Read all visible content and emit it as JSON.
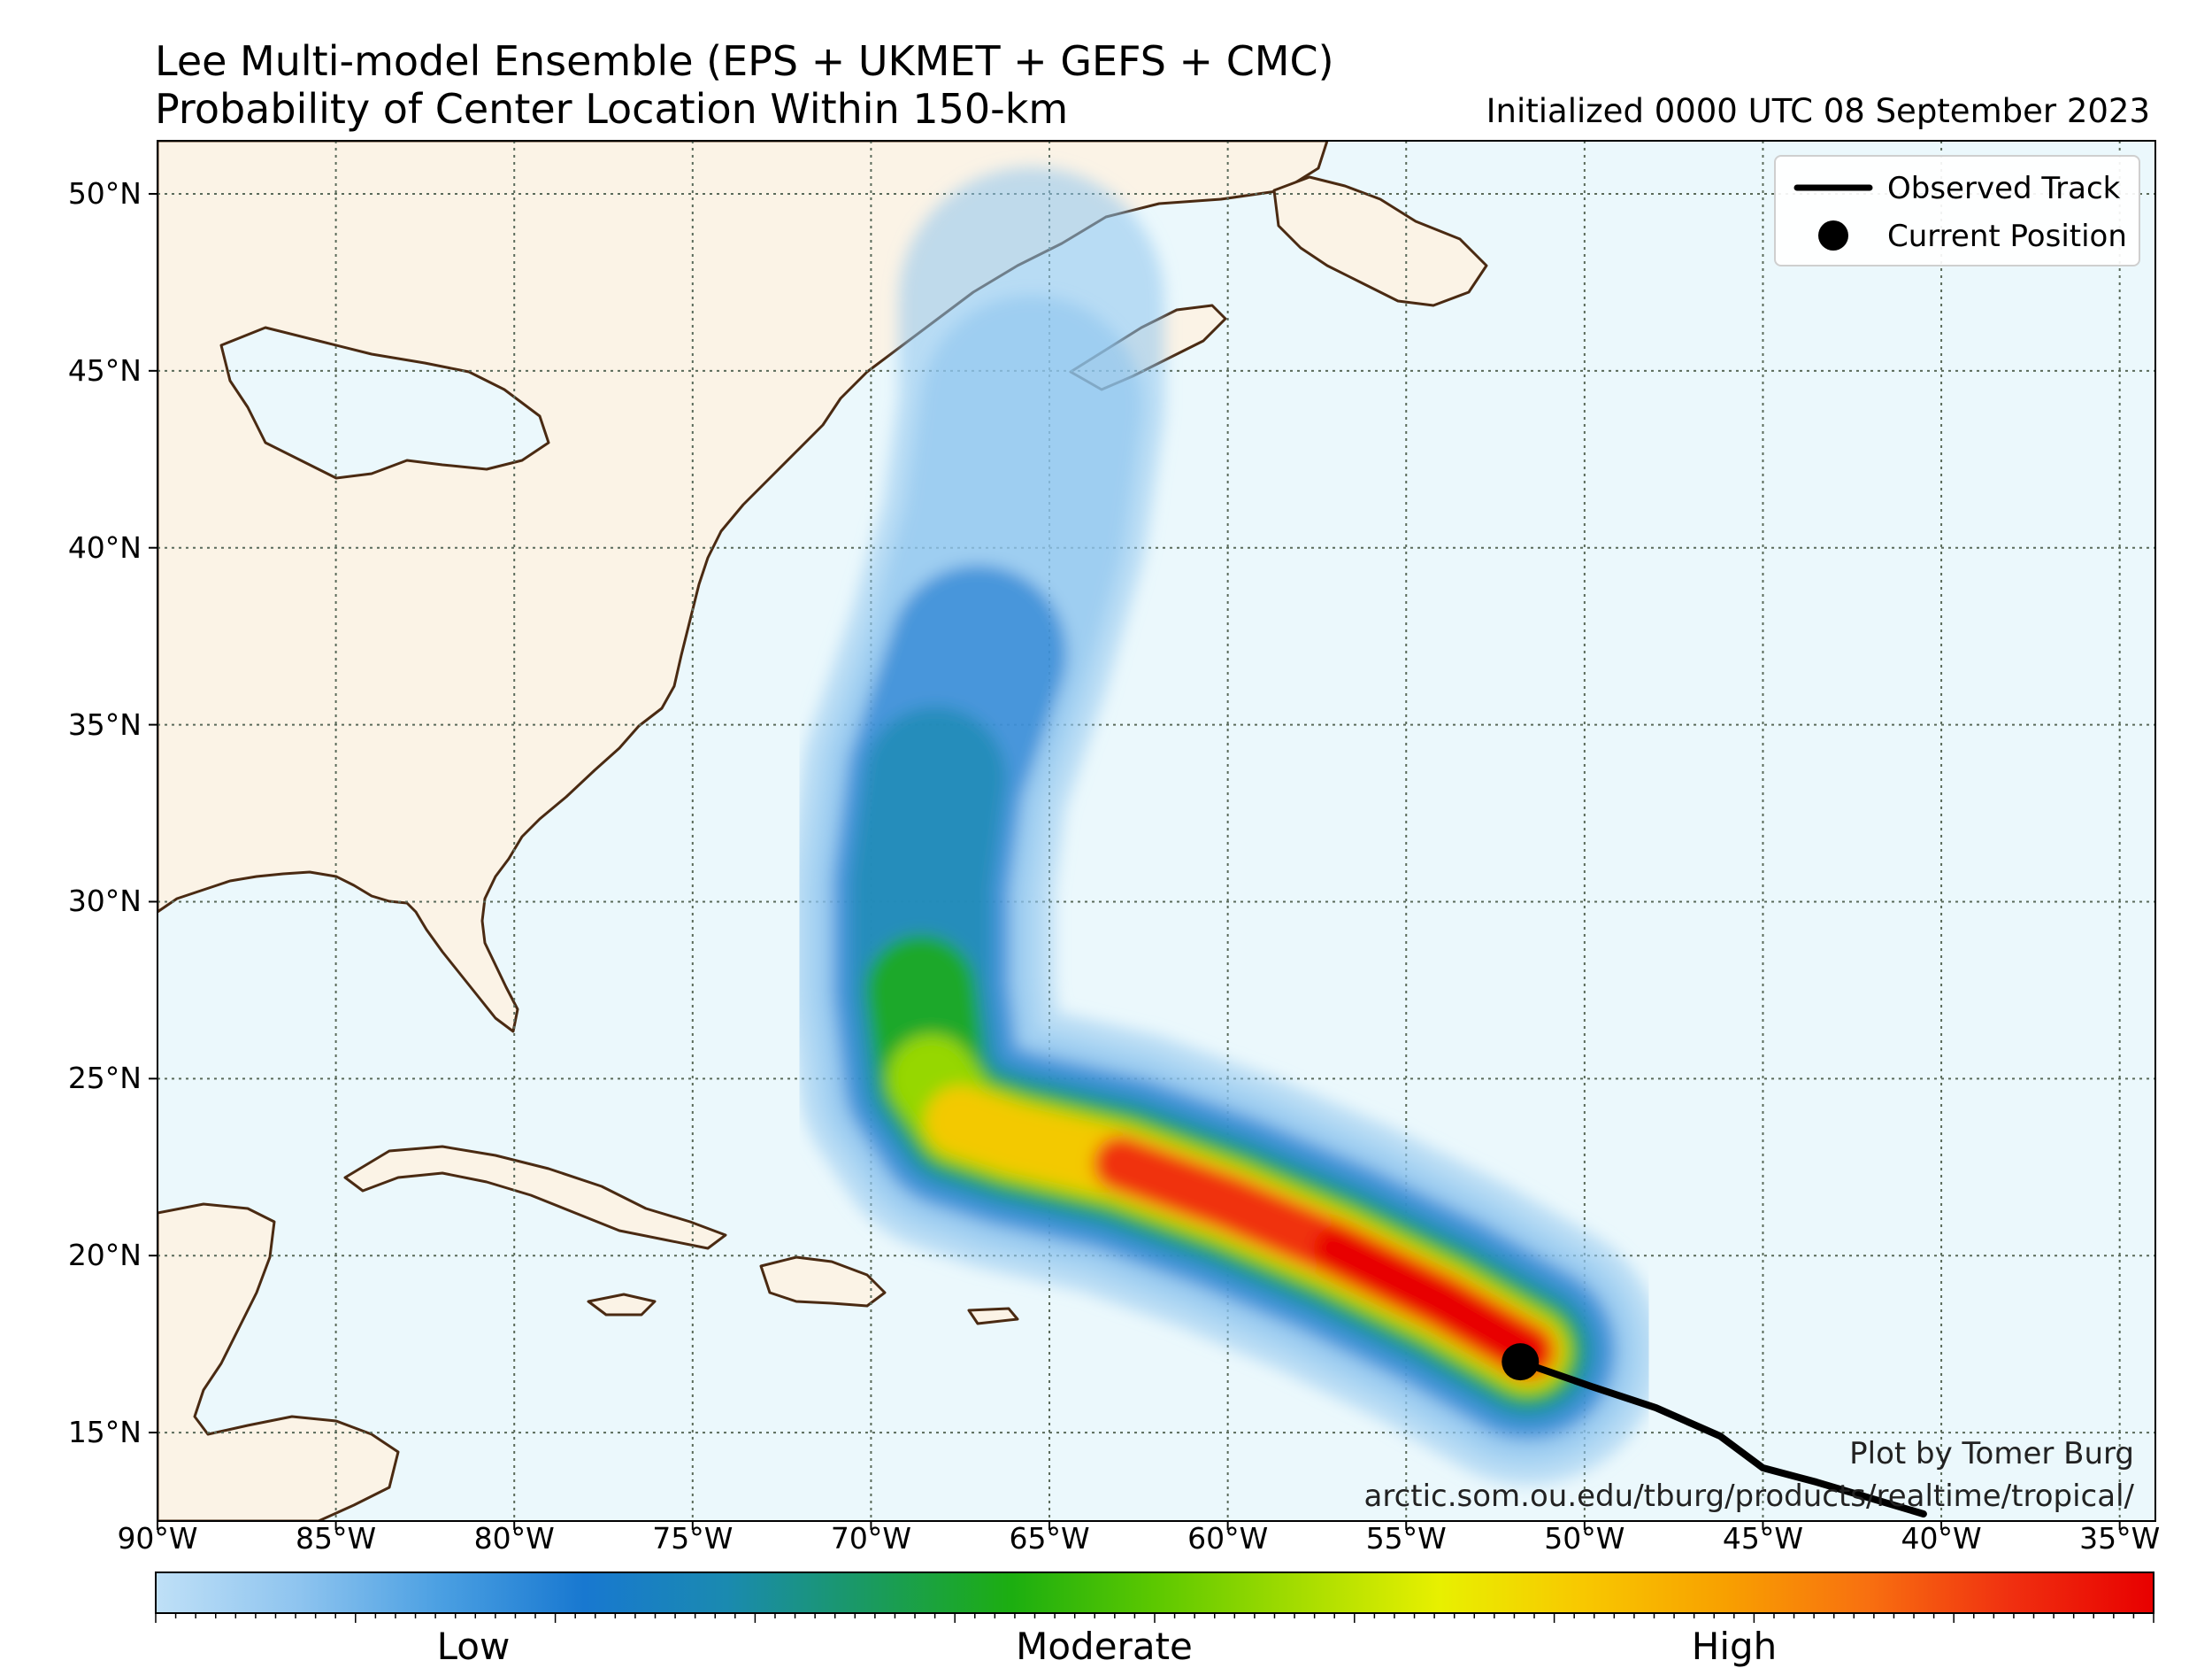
{
  "title": {
    "line1": "Lee Multi-model Ensemble (EPS + UKMET + GEFS + CMC)",
    "line2": "Probability of Center Location Within 150-km",
    "initialized": "Initialized 0000 UTC 08 September 2023"
  },
  "map": {
    "lon_range": [
      -90,
      -34
    ],
    "lat_range": [
      12.5,
      51.5
    ],
    "lat_labels": [
      "50°N",
      "45°N",
      "40°N",
      "35°N",
      "30°N",
      "25°N",
      "20°N",
      "15°N"
    ],
    "lon_labels": [
      "90°W",
      "85°W",
      "80°W",
      "75°W",
      "70°W",
      "65°W",
      "60°W",
      "55°W",
      "50°W",
      "45°W",
      "40°W",
      "35°W"
    ],
    "ocean_color": "#ebf8fc",
    "land_color": "#fbf3e6",
    "coast_color": "#4a2a12",
    "grid": "dotted"
  },
  "legend": {
    "placement": "top-right",
    "observed_track": "Observed Track",
    "current_position": "Current Position"
  },
  "storm": {
    "current_position": {
      "lon": -51.8,
      "lat": 17.0
    },
    "observed_track": [
      [
        -51.8,
        17.0
      ],
      [
        -49.8,
        16.3
      ],
      [
        -48.0,
        15.7
      ],
      [
        -46.2,
        14.9
      ],
      [
        -45.0,
        14.0
      ],
      [
        -43.5,
        13.6
      ],
      [
        -40.5,
        12.7
      ]
    ]
  },
  "probability_track": [
    {
      "lon": -51.6,
      "lat": 17.3,
      "level": 1.0
    },
    {
      "lon": -54.0,
      "lat": 18.7,
      "level": 0.97
    },
    {
      "lon": -57.0,
      "lat": 20.2,
      "level": 0.94
    },
    {
      "lon": -60.0,
      "lat": 21.5,
      "level": 0.9
    },
    {
      "lon": -63.0,
      "lat": 22.6,
      "level": 0.86
    },
    {
      "lon": -66.0,
      "lat": 23.3,
      "level": 0.8
    },
    {
      "lon": -67.5,
      "lat": 23.8,
      "level": 0.72
    },
    {
      "lon": -68.3,
      "lat": 25.0,
      "level": 0.6
    },
    {
      "lon": -68.6,
      "lat": 27.5,
      "level": 0.5
    },
    {
      "lon": -68.6,
      "lat": 30.5,
      "level": 0.42
    },
    {
      "lon": -68.2,
      "lat": 33.5,
      "level": 0.3
    },
    {
      "lon": -67.0,
      "lat": 37.0,
      "level": 0.2
    },
    {
      "lon": -66.0,
      "lat": 40.5,
      "level": 0.14
    },
    {
      "lon": -65.5,
      "lat": 44.0,
      "level": 0.1
    },
    {
      "lon": -65.5,
      "lat": 47.0,
      "level": 0.06
    }
  ],
  "credit": {
    "line1": "Plot by Tomer Burg",
    "line2": "arctic.som.ou.edu/tburg/products/realtime/tropical/"
  },
  "colorbar": {
    "labels": [
      "Low",
      "Moderate",
      "High"
    ],
    "colors": [
      "#bfe0f7",
      "#8ec4ef",
      "#4a9fe2",
      "#1878d0",
      "#1a8ab0",
      "#1a9a60",
      "#1cae10",
      "#5cc800",
      "#a4dc00",
      "#e8f000",
      "#f8c800",
      "#f8a000",
      "#f87010",
      "#f03010",
      "#e80000"
    ]
  }
}
